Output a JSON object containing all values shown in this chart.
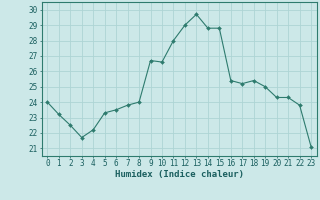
{
  "x": [
    0,
    1,
    2,
    3,
    4,
    5,
    6,
    7,
    8,
    9,
    10,
    11,
    12,
    13,
    14,
    15,
    16,
    17,
    18,
    19,
    20,
    21,
    22,
    23
  ],
  "y": [
    24.0,
    23.2,
    22.5,
    21.7,
    22.2,
    23.3,
    23.5,
    23.8,
    24.0,
    26.7,
    26.6,
    28.0,
    29.0,
    29.7,
    28.8,
    28.8,
    25.4,
    25.2,
    25.4,
    25.0,
    24.3,
    24.3,
    23.8,
    21.1
  ],
  "line_color": "#2e7b6e",
  "marker": "D",
  "marker_size": 2.0,
  "bg_color": "#cce8e8",
  "grid_color": "#aed4d4",
  "xlabel": "Humidex (Indice chaleur)",
  "ylim": [
    20.5,
    30.5
  ],
  "xlim": [
    -0.5,
    23.5
  ],
  "yticks": [
    21,
    22,
    23,
    24,
    25,
    26,
    27,
    28,
    29,
    30
  ],
  "xticks": [
    0,
    1,
    2,
    3,
    4,
    5,
    6,
    7,
    8,
    9,
    10,
    11,
    12,
    13,
    14,
    15,
    16,
    17,
    18,
    19,
    20,
    21,
    22,
    23
  ],
  "axis_fontsize": 6.5,
  "tick_fontsize": 5.5
}
